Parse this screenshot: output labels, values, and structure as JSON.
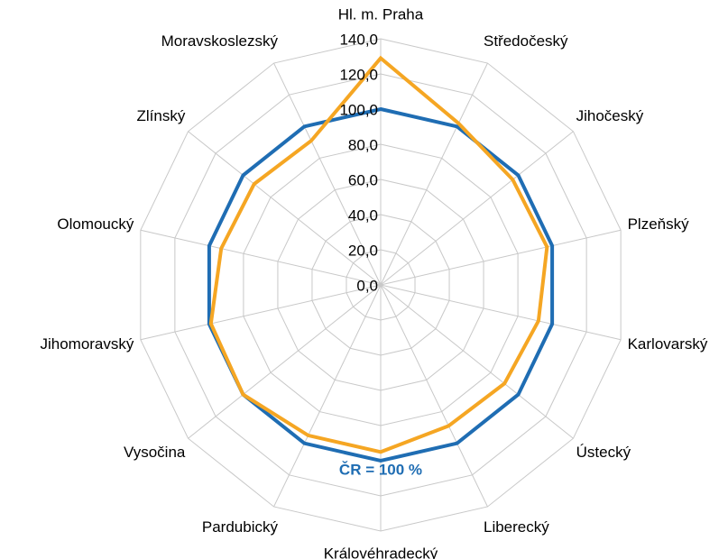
{
  "chart_data": {
    "type": "radar",
    "categories": [
      "Hl. m. Praha",
      "Středočeský",
      "Jihočeský",
      "Plzeňský",
      "Karlovarský",
      "Ústecký",
      "Liberecký",
      "Královéhradecký",
      "Pardubický",
      "Vysočina",
      "Jihomoravský",
      "Olomoucký",
      "Zlínský",
      "Moravskoslezský"
    ],
    "series": [
      {
        "color": "#1f6db3",
        "values": [
          100,
          100,
          100,
          100,
          100,
          100,
          100,
          100,
          100,
          100,
          100,
          100,
          100,
          100
        ]
      },
      {
        "color": "#f5a623",
        "values": [
          129,
          102,
          96,
          97,
          92,
          90,
          89,
          95,
          95,
          100,
          99,
          93,
          92,
          91
        ]
      }
    ],
    "ylim": [
      0,
      140
    ],
    "yticks": [
      {
        "value": 0,
        "label": "0,0"
      },
      {
        "value": 20,
        "label": "20,0"
      },
      {
        "value": 40,
        "label": "40,0"
      },
      {
        "value": 60,
        "label": "60,0"
      },
      {
        "value": 80,
        "label": "80,0"
      },
      {
        "value": 100,
        "label": "100,0"
      },
      {
        "value": 120,
        "label": "120,0"
      },
      {
        "value": 140,
        "label": "140,0"
      }
    ],
    "annotation": "ČR = 100 %",
    "grid": true
  }
}
